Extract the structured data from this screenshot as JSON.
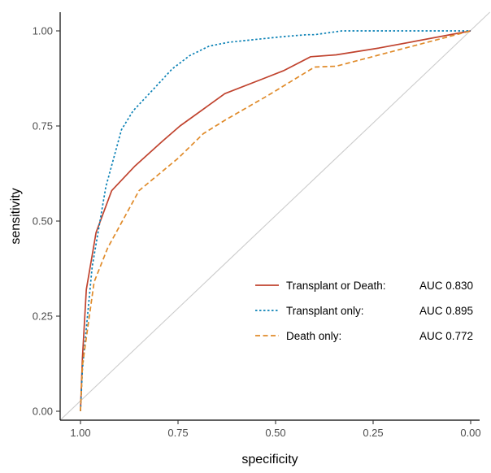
{
  "chart_data": {
    "type": "line",
    "title": "",
    "xlabel": "specificity",
    "ylabel": "sensitivity",
    "xlim": [
      1.0,
      0.0
    ],
    "ylim": [
      0.0,
      1.0
    ],
    "x_reversed": true,
    "grid": false,
    "legend_position": "bottom-right",
    "x_ticks": [
      1.0,
      0.75,
      0.5,
      0.25,
      0.0
    ],
    "x_tick_labels": [
      "1.00",
      "0.75",
      "0.50",
      "0.25",
      "0.00"
    ],
    "y_ticks": [
      0.0,
      0.25,
      0.5,
      0.75,
      1.0
    ],
    "y_tick_labels": [
      "0.00",
      "0.25",
      "0.50",
      "0.75",
      "1.00"
    ],
    "reference_line": {
      "x": [
        1.0,
        0.0
      ],
      "y": [
        0.0,
        1.0
      ],
      "color": "#cccccc"
    },
    "series": [
      {
        "name": "Transplant or Death:",
        "auc_label": "AUC 0.830",
        "color": "#c0432e",
        "dash": "solid",
        "x": [
          1.0,
          0.995,
          0.985,
          0.96,
          0.92,
          0.86,
          0.79,
          0.745,
          0.63,
          0.53,
          0.48,
          0.41,
          0.345,
          0.235,
          0.0
        ],
        "y": [
          0.0,
          0.14,
          0.32,
          0.47,
          0.58,
          0.645,
          0.71,
          0.75,
          0.835,
          0.875,
          0.895,
          0.932,
          0.937,
          0.955,
          1.0
        ]
      },
      {
        "name": "Transplant only:",
        "auc_label": "AUC 0.895",
        "color": "#0c82b6",
        "dash": "dotted",
        "x": [
          1.0,
          0.995,
          0.97,
          0.935,
          0.895,
          0.865,
          0.81,
          0.765,
          0.72,
          0.67,
          0.62,
          0.48,
          0.42,
          0.4,
          0.33,
          0.0
        ],
        "y": [
          0.0,
          0.11,
          0.38,
          0.59,
          0.74,
          0.79,
          0.85,
          0.9,
          0.935,
          0.96,
          0.97,
          0.985,
          0.99,
          0.99,
          1.0,
          1.0
        ]
      },
      {
        "name": "Death only:",
        "auc_label": "AUC 0.772",
        "color": "#e08b2a",
        "dash": "dashed",
        "x": [
          1.0,
          0.995,
          0.965,
          0.93,
          0.85,
          0.75,
          0.685,
          0.63,
          0.52,
          0.4,
          0.345,
          0.0
        ],
        "y": [
          0.0,
          0.12,
          0.34,
          0.43,
          0.58,
          0.665,
          0.73,
          0.765,
          0.83,
          0.905,
          0.907,
          1.0
        ]
      }
    ]
  }
}
